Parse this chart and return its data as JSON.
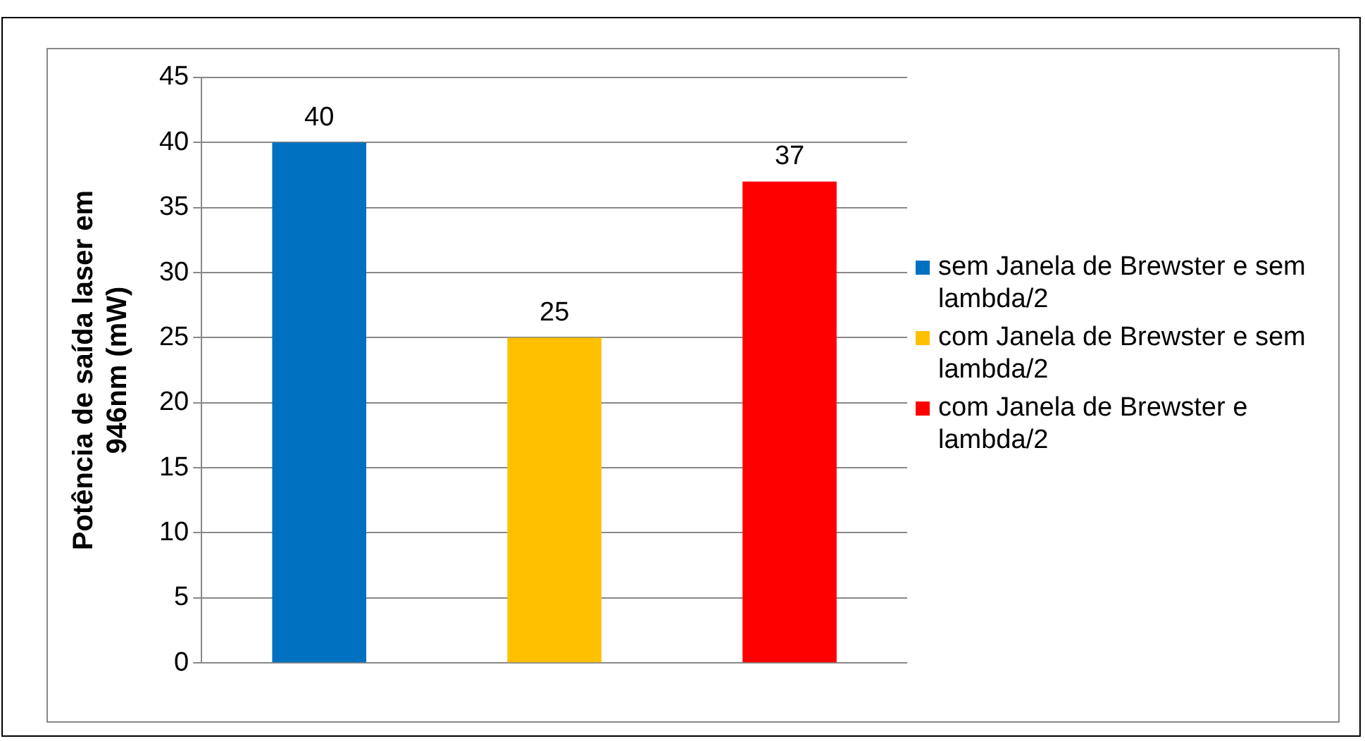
{
  "chart_data": {
    "type": "bar",
    "ylabel": "Potência de saída laser em 946nm (mW)",
    "categories": [
      null
    ],
    "series": [
      {
        "name": "sem Janela de Brewster e sem lambda/2",
        "color": "#0070c0",
        "values": [
          40
        ]
      },
      {
        "name": "com Janela de Brewster e sem lambda/2",
        "color": "#ffc000",
        "values": [
          25
        ]
      },
      {
        "name": "com Janela de Brewster e lambda/2",
        "color": "#ff0000",
        "values": [
          37
        ]
      }
    ],
    "ylim": [
      0,
      45
    ],
    "yticks": [
      0,
      5,
      10,
      15,
      20,
      25,
      30,
      35,
      40,
      45
    ],
    "grid": "y",
    "legend": "right",
    "data_labels": true
  }
}
